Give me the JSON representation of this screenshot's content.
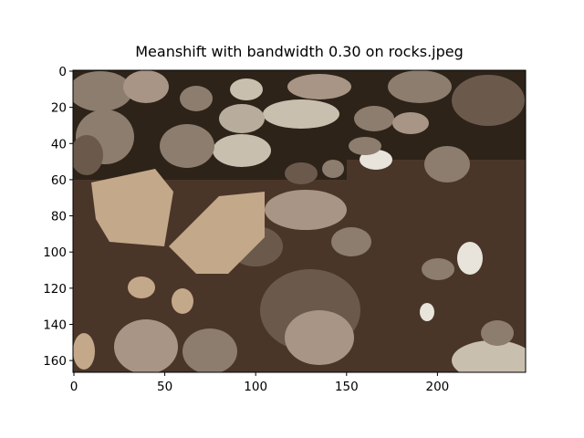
{
  "chart_data": {
    "type": "image",
    "title": "Meanshift with bandwidth 0.30 on rocks.jpeg",
    "xlim": [
      -0.5,
      248.5
    ],
    "ylim": [
      166.5,
      -0.5
    ],
    "xticks": [
      0,
      50,
      100,
      150,
      200
    ],
    "yticks": [
      0,
      20,
      40,
      60,
      80,
      100,
      120,
      140,
      160
    ]
  }
}
